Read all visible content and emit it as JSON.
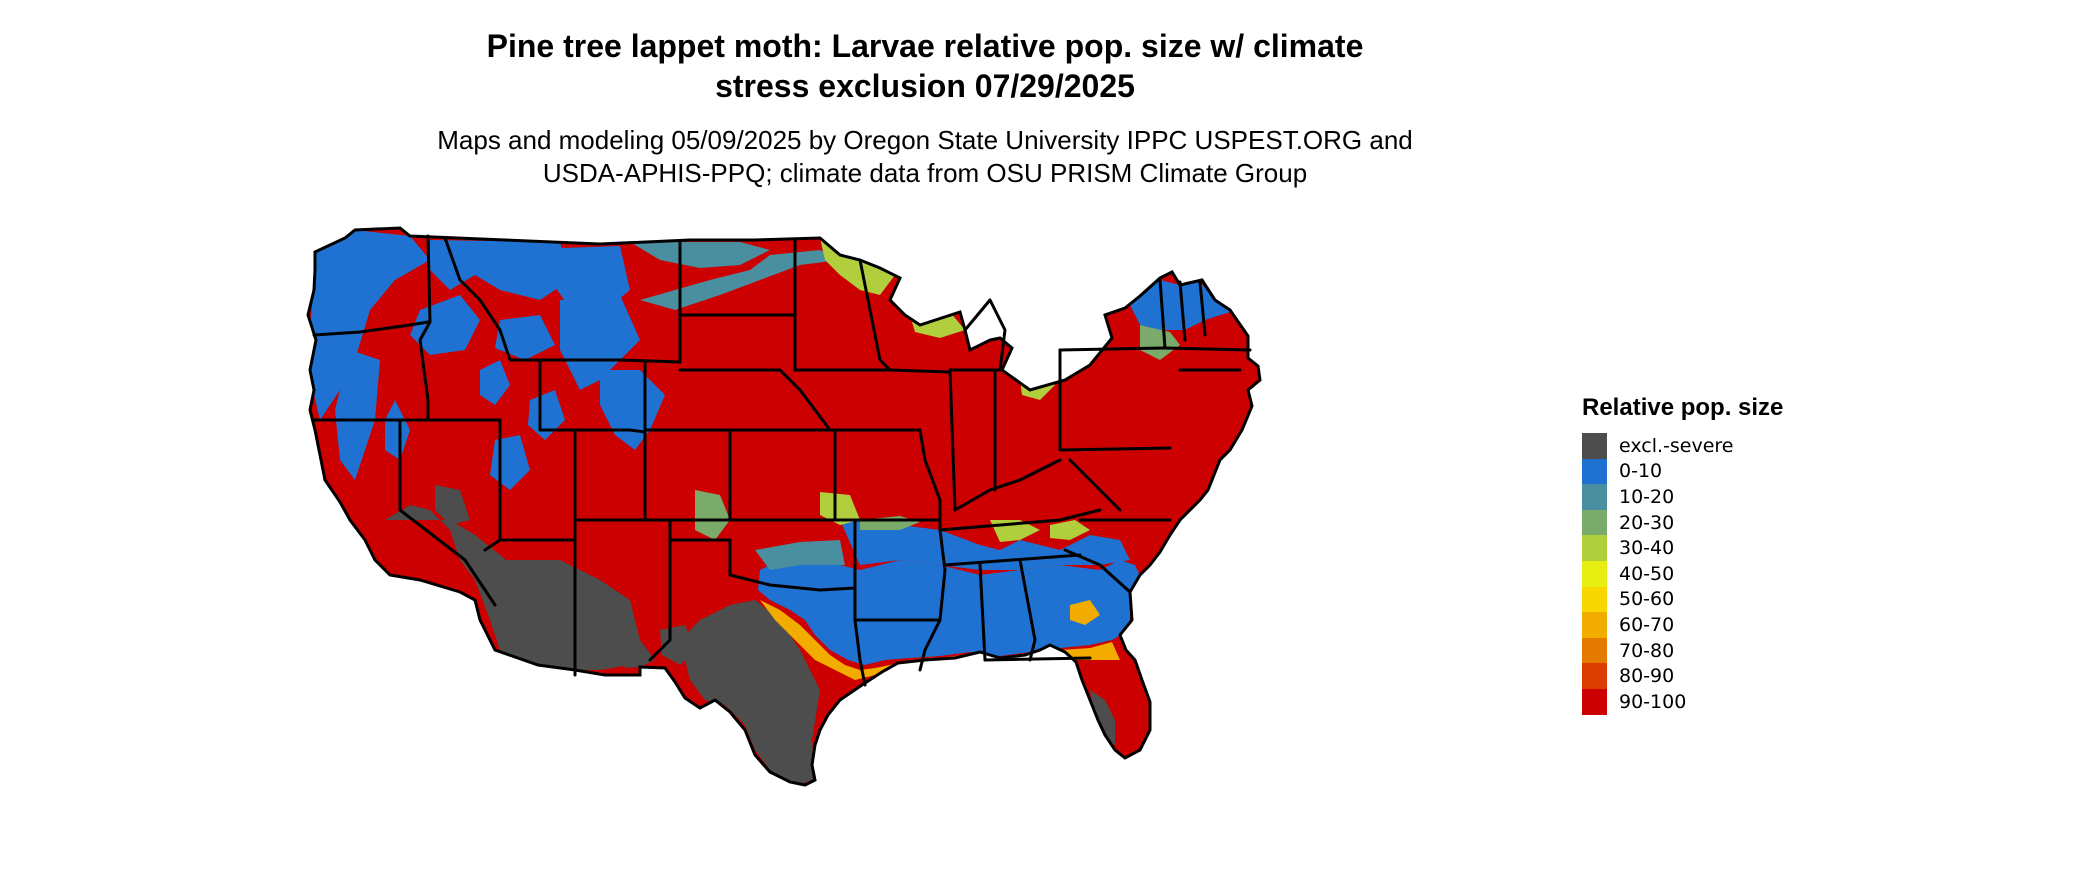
{
  "title": {
    "line1": "Pine tree lappet moth: Larvae relative pop. size w/ climate",
    "line2": "stress exclusion 07/29/2025"
  },
  "subtitle": {
    "line1": "Maps and modeling 05/09/2025 by Oregon State University IPPC USPEST.ORG and",
    "line2": "USDA-APHIS-PPQ; climate data from OSU PRISM Climate Group"
  },
  "legend": {
    "title": "Relative pop. size",
    "items": [
      {
        "label": "excl.-severe",
        "color": "#4d4d4d"
      },
      {
        "label": "0-10",
        "color": "#1f72d1"
      },
      {
        "label": "10-20",
        "color": "#4a8fa0"
      },
      {
        "label": "20-30",
        "color": "#7aab6b"
      },
      {
        "label": "30-40",
        "color": "#b1cf3d"
      },
      {
        "label": "40-50",
        "color": "#e6ee12"
      },
      {
        "label": "50-60",
        "color": "#f8d700"
      },
      {
        "label": "60-70",
        "color": "#f2ac00"
      },
      {
        "label": "70-80",
        "color": "#e57a00"
      },
      {
        "label": "80-90",
        "color": "#db3d00"
      },
      {
        "label": "90-100",
        "color": "#cc0000"
      }
    ]
  },
  "map": {
    "region": "contiguous United States",
    "colors": {
      "border": "#000000",
      "excluded": "#4d4d4d",
      "low": "#1f72d1",
      "high": "#cc0000"
    }
  }
}
